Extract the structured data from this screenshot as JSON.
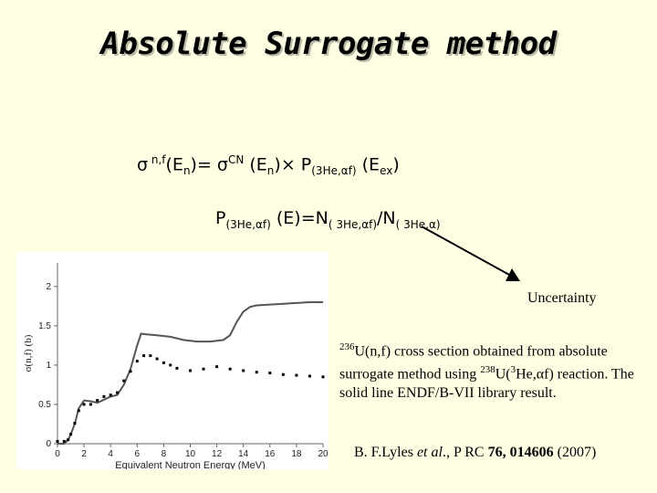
{
  "slide": {
    "title": "Absolute Surrogate method",
    "equation1": {
      "sigma": "σ",
      "sup_nf": " n,f",
      "en_open": "(E",
      "sub_n1": "n",
      "eq_sigma": ")= σ",
      "sup_cn": "CN",
      "en2_open": " (E",
      "sub_n2": "n",
      "times_p": ")× P",
      "sub_reaction": "(3He,αf)",
      "eex_open": " (E",
      "sub_ex": "ex",
      "close": ")"
    },
    "equation2": {
      "p": "P",
      "sub_reaction": "(3He,αf)",
      "eq_n": " (E)=N",
      "sub_num": "( 3He,αf)",
      "slash_n": "/N",
      "sub_den": "( 3He,α)"
    },
    "uncertainty_label": "Uncertainty",
    "caption": {
      "sup_236": "236",
      "text1": "U(n,f) cross section obtained from absolute surrogate method using ",
      "sup_238": "238",
      "text2": "U(",
      "sup_3": "3",
      "text3": "He,αf) reaction. The solid line  ENDF/B-VII library result."
    },
    "reference": {
      "authors": "B. F.Lyles ",
      "etal": "et al",
      "rest": "., P RC ",
      "volume": "76, 014606",
      "year": " (2007)"
    },
    "colors": {
      "background": "#ffffe3",
      "line": "#555555",
      "points": "#000000"
    }
  },
  "chart_data": {
    "type": "line",
    "xlabel": "Equivalent Neutron Energy (MeV)",
    "ylabel": "σ(n,f) (b)",
    "xlim": [
      0,
      20
    ],
    "ylim": [
      0,
      2.3
    ],
    "xticks": [
      "0",
      "2",
      "4",
      "6",
      "8",
      "10",
      "12",
      "14",
      "16",
      "18",
      "20"
    ],
    "yticks": [
      "0",
      "0.5",
      "1",
      "1.5",
      "2"
    ],
    "grid": false,
    "series": [
      {
        "style": "solid line",
        "x": [
          0,
          0.5,
          0.8,
          1.0,
          1.3,
          1.6,
          2.0,
          2.5,
          3.0,
          3.5,
          4.0,
          4.5,
          5.0,
          5.5,
          6.0,
          6.3,
          6.8,
          7.5,
          8.5,
          9.5,
          10.5,
          11.5,
          12.5,
          13.0,
          13.5,
          14.0,
          14.5,
          15.0,
          16.0,
          17.0,
          18.0,
          19.0,
          20.0
        ],
        "y": [
          0.0,
          0.0,
          0.05,
          0.12,
          0.25,
          0.45,
          0.55,
          0.54,
          0.52,
          0.56,
          0.6,
          0.62,
          0.75,
          0.95,
          1.25,
          1.4,
          1.39,
          1.38,
          1.36,
          1.32,
          1.3,
          1.3,
          1.32,
          1.38,
          1.55,
          1.68,
          1.74,
          1.76,
          1.77,
          1.78,
          1.79,
          1.8,
          1.8
        ]
      },
      {
        "style": "points",
        "x": [
          0,
          0.5,
          0.8,
          1.0,
          1.3,
          1.6,
          2.0,
          2.5,
          3.0,
          3.5,
          4.0,
          4.5,
          5.0,
          5.5,
          6.0,
          6.5,
          7.0,
          7.5,
          8.0,
          8.5,
          9.0,
          10.0,
          11.0,
          12.0,
          13.0,
          14.0,
          15.0,
          16.0,
          17.0,
          18.0,
          19.0,
          20.0
        ],
        "y": [
          0.03,
          0.03,
          0.05,
          0.12,
          0.26,
          0.42,
          0.5,
          0.5,
          0.55,
          0.6,
          0.62,
          0.65,
          0.8,
          0.92,
          1.05,
          1.12,
          1.12,
          1.08,
          1.03,
          1.0,
          0.96,
          0.93,
          0.95,
          0.98,
          0.95,
          0.93,
          0.91,
          0.9,
          0.88,
          0.87,
          0.86,
          0.85
        ]
      }
    ]
  }
}
